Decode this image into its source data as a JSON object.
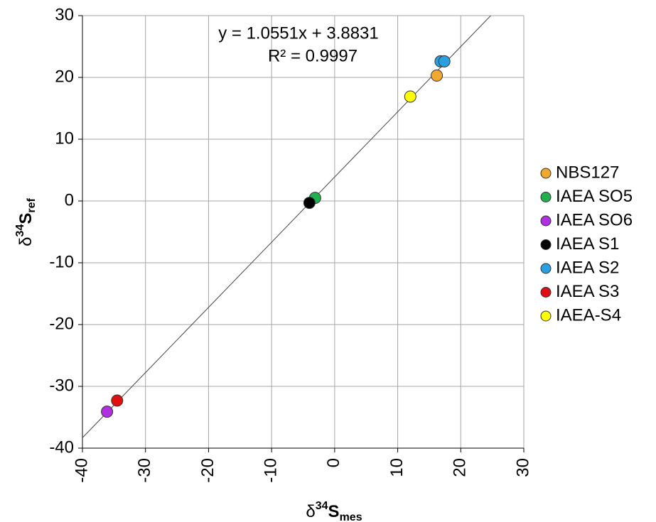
{
  "chart_data": {
    "type": "scatter",
    "x_label": {
      "prefix": "δ",
      "sup": "34",
      "main": "S",
      "sub": "mes"
    },
    "y_label": {
      "prefix": "δ",
      "sup": "34",
      "main": "S",
      "sub": "ref"
    },
    "xlim": [
      -40,
      30
    ],
    "xticks": [
      -40,
      -30,
      -20,
      -10,
      0,
      10,
      20,
      30
    ],
    "ylim": [
      -40,
      30
    ],
    "yticks": [
      -40,
      -30,
      -20,
      -10,
      0,
      10,
      20,
      30
    ],
    "grid": true,
    "trendline": {
      "slope": 1.0551,
      "intercept": 3.8831,
      "equation": "y = 1.0551x + 3.8831",
      "r2": "R² = 0.9997"
    },
    "series": [
      {
        "name": "NBS127",
        "color": "#f0a830",
        "x": [
          16.2
        ],
        "values": [
          20.3
        ]
      },
      {
        "name": "IAEA SO5",
        "color": "#22b04e",
        "x": [
          -3.1
        ],
        "values": [
          0.5
        ]
      },
      {
        "name": "IAEA SO6",
        "color": "#b030e0",
        "x": [
          -36.1
        ],
        "values": [
          -34.1
        ]
      },
      {
        "name": "IAEA S1",
        "color": "#000000",
        "x": [
          -4.0
        ],
        "values": [
          -0.3
        ]
      },
      {
        "name": "IAEA S2",
        "color": "#2aa0e0",
        "x": [
          16.8,
          17.4
        ],
        "values": [
          22.6,
          22.6
        ]
      },
      {
        "name": "IAEA S3",
        "color": "#e01010",
        "x": [
          -34.5
        ],
        "values": [
          -32.3
        ]
      },
      {
        "name": "IAEA-S4",
        "color": "#ffff00",
        "x": [
          12.0
        ],
        "values": [
          16.9
        ]
      }
    ]
  }
}
